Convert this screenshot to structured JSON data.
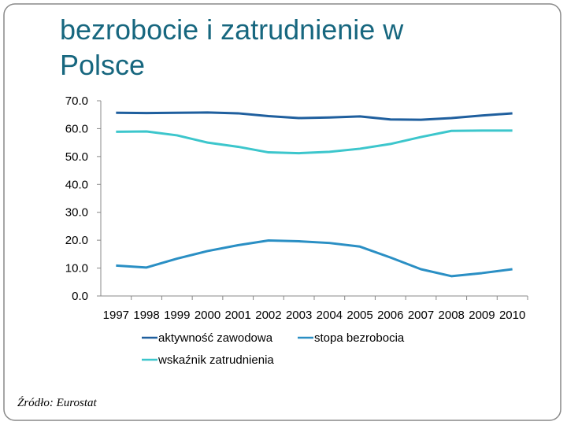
{
  "title_lines": [
    "bezrobocie i zatrudnienie w",
    "Polsce"
  ],
  "source": "Źródło: Eurostat",
  "chart_data": {
    "type": "line",
    "categories": [
      "1997",
      "1998",
      "1999",
      "2000",
      "2001",
      "2002",
      "2003",
      "2004",
      "2005",
      "2006",
      "2007",
      "2008",
      "2009",
      "2010"
    ],
    "series": [
      {
        "name": "aktywność zawodowa",
        "color": "#1f5f9e",
        "values": [
          65.7,
          65.6,
          65.7,
          65.8,
          65.5,
          64.5,
          63.8,
          64.0,
          64.4,
          63.3,
          63.2,
          63.8,
          64.7,
          65.5
        ]
      },
      {
        "name": "stopa bezrobocia",
        "color": "#2a8fc4",
        "values": [
          10.9,
          10.2,
          13.4,
          16.1,
          18.2,
          19.9,
          19.6,
          19.0,
          17.7,
          13.8,
          9.6,
          7.1,
          8.2,
          9.6
        ]
      },
      {
        "name": "wskaźnik zatrudnienia",
        "color": "#3cc6cc",
        "values": [
          58.9,
          59.0,
          57.6,
          55.0,
          53.5,
          51.5,
          51.2,
          51.7,
          52.8,
          54.5,
          57.0,
          59.2,
          59.3,
          59.3
        ]
      }
    ],
    "ylim": [
      0,
      70
    ],
    "yticks": [
      {
        "value": 0,
        "label": "0.0"
      },
      {
        "value": 10,
        "label": "10.0"
      },
      {
        "value": 20,
        "label": "20.0"
      },
      {
        "value": 30,
        "label": "30.0"
      },
      {
        "value": 40,
        "label": "40.0"
      },
      {
        "value": 50,
        "label": "50.0"
      },
      {
        "value": 60,
        "label": "60.0"
      },
      {
        "value": 70,
        "label": "70.0"
      }
    ],
    "grid": false
  }
}
